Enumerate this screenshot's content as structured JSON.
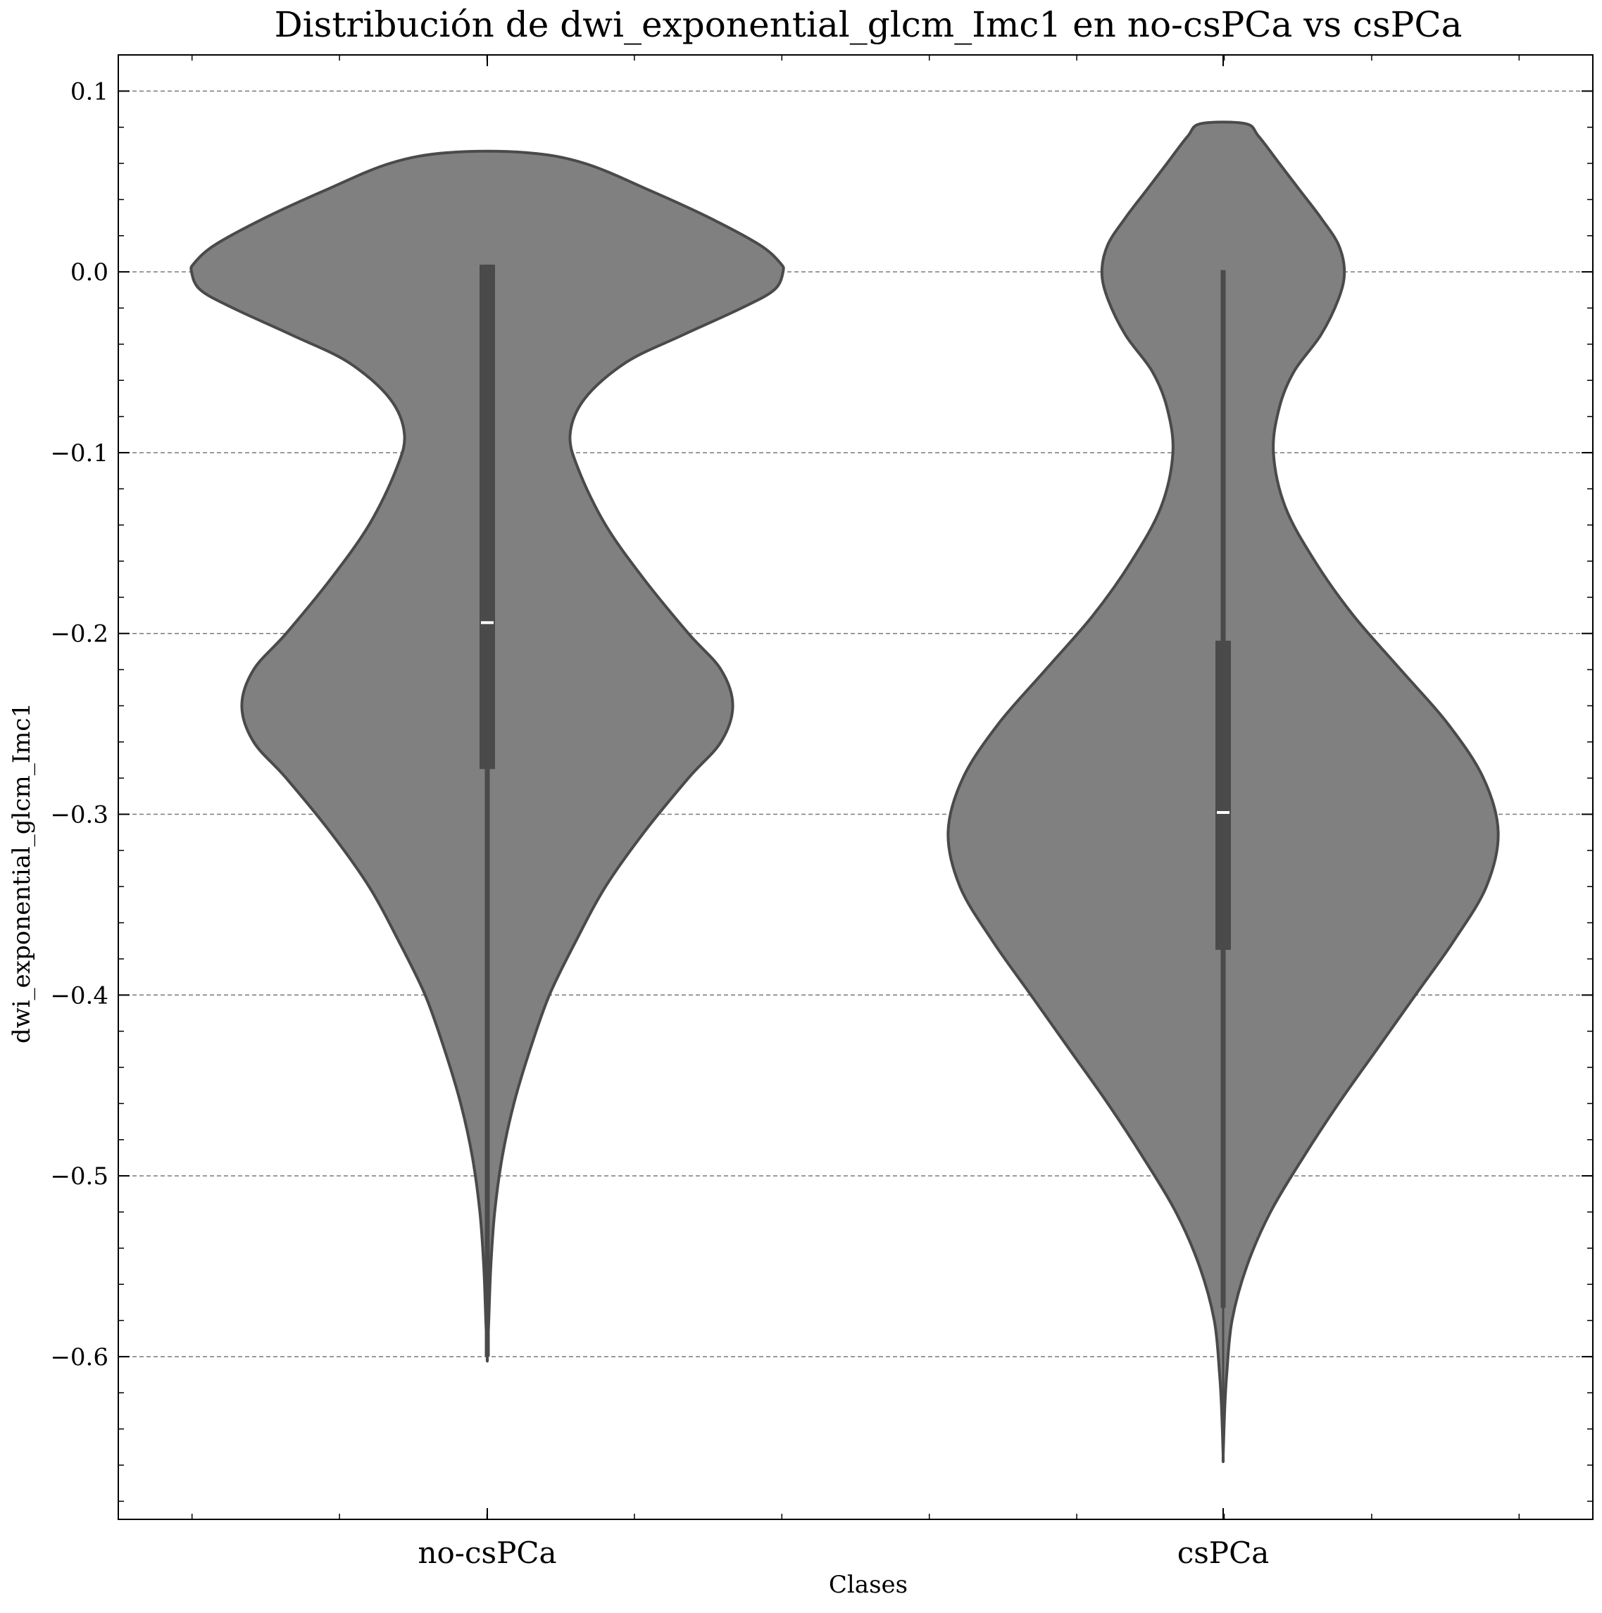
{
  "chart_data": {
    "type": "violin",
    "title": "Distribución de dwi_exponential_glcm_Imc1 en no-csPCa vs csPCa",
    "xlabel": "Clases",
    "ylabel": "dwi_exponential_glcm_Imc1",
    "categories": [
      "no-csPCa",
      "csPCa"
    ],
    "ylim": [
      -0.69,
      0.12
    ],
    "yticks": [
      0.1,
      0.0,
      -0.1,
      -0.2,
      -0.3,
      -0.4,
      -0.5,
      -0.6
    ],
    "ytick_labels": [
      "0.1",
      "0.0",
      "−0.1",
      "−0.2",
      "−0.3",
      "−0.4",
      "−0.5",
      "−0.6"
    ],
    "grid": "horizontal dashed",
    "colors": {
      "fill": "#808080",
      "edge": "#4a4a4a",
      "box": "#4a4a4a",
      "median": "#ffffff",
      "grid": "#7a7a7a"
    },
    "violins": [
      {
        "category": "no-csPCa",
        "min": -0.6,
        "q1": -0.275,
        "median": -0.194,
        "q3": 0.004,
        "max": 0.066,
        "whisker_low": -0.6,
        "whisker_high": 0.004,
        "density_profile": [
          [
            0.066,
            0.13
          ],
          [
            0.06,
            0.33
          ],
          [
            0.045,
            0.55
          ],
          [
            0.03,
            0.75
          ],
          [
            0.015,
            0.92
          ],
          [
            0.005,
            0.99
          ],
          [
            0.0,
            1.0
          ],
          [
            -0.01,
            0.97
          ],
          [
            -0.02,
            0.86
          ],
          [
            -0.035,
            0.66
          ],
          [
            -0.05,
            0.47
          ],
          [
            -0.07,
            0.33
          ],
          [
            -0.09,
            0.28
          ],
          [
            -0.11,
            0.31
          ],
          [
            -0.14,
            0.4
          ],
          [
            -0.17,
            0.53
          ],
          [
            -0.2,
            0.68
          ],
          [
            -0.22,
            0.79
          ],
          [
            -0.24,
            0.83
          ],
          [
            -0.26,
            0.79
          ],
          [
            -0.28,
            0.68
          ],
          [
            -0.31,
            0.53
          ],
          [
            -0.34,
            0.4
          ],
          [
            -0.37,
            0.3
          ],
          [
            -0.4,
            0.21
          ],
          [
            -0.43,
            0.145
          ],
          [
            -0.46,
            0.09
          ],
          [
            -0.49,
            0.05
          ],
          [
            -0.52,
            0.025
          ],
          [
            -0.55,
            0.012
          ],
          [
            -0.58,
            0.005
          ],
          [
            -0.6,
            0.0
          ]
        ]
      },
      {
        "category": "csPCa",
        "min": -0.655,
        "q1": -0.375,
        "median": -0.299,
        "q3": -0.204,
        "max": 0.082,
        "whisker_low": -0.573,
        "whisker_high": 0.001,
        "density_profile": [
          [
            0.082,
            0.075
          ],
          [
            0.075,
            0.12
          ],
          [
            0.06,
            0.19
          ],
          [
            0.045,
            0.26
          ],
          [
            0.03,
            0.33
          ],
          [
            0.015,
            0.39
          ],
          [
            0.0,
            0.41
          ],
          [
            -0.015,
            0.39
          ],
          [
            -0.035,
            0.33
          ],
          [
            -0.055,
            0.24
          ],
          [
            -0.075,
            0.19
          ],
          [
            -0.1,
            0.17
          ],
          [
            -0.13,
            0.21
          ],
          [
            -0.16,
            0.31
          ],
          [
            -0.19,
            0.44
          ],
          [
            -0.22,
            0.6
          ],
          [
            -0.25,
            0.76
          ],
          [
            -0.28,
            0.88
          ],
          [
            -0.31,
            0.93
          ],
          [
            -0.34,
            0.89
          ],
          [
            -0.37,
            0.78
          ],
          [
            -0.4,
            0.65
          ],
          [
            -0.43,
            0.52
          ],
          [
            -0.46,
            0.39
          ],
          [
            -0.49,
            0.27
          ],
          [
            -0.52,
            0.16
          ],
          [
            -0.55,
            0.08
          ],
          [
            -0.58,
            0.03
          ],
          [
            -0.61,
            0.012
          ],
          [
            -0.63,
            0.005
          ],
          [
            -0.655,
            0.0
          ]
        ]
      }
    ]
  }
}
